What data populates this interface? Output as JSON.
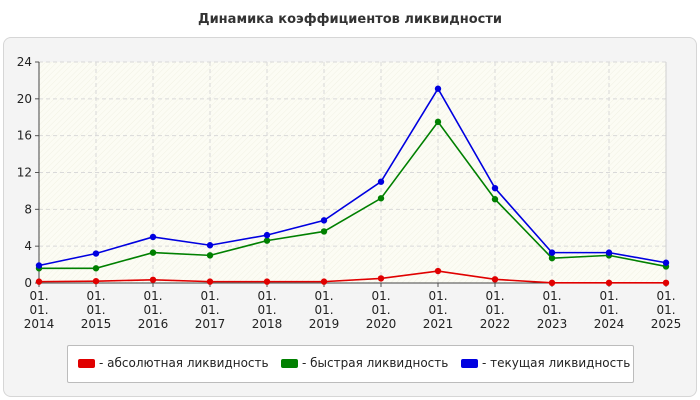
{
  "title": "Динамика коэффициентов ликвидности",
  "colors": {
    "absolute": "#e00000",
    "quick": "#008000",
    "current": "#0000e0"
  },
  "chart_data": {
    "type": "line",
    "title": "Динамика коэффициентов ликвидности",
    "xlabel": "",
    "ylabel": "",
    "categories": [
      [
        "01.",
        "01.",
        "2014"
      ],
      [
        "01.",
        "01.",
        "2015"
      ],
      [
        "01.",
        "01.",
        "2016"
      ],
      [
        "01.",
        "01.",
        "2017"
      ],
      [
        "01.",
        "01.",
        "2018"
      ],
      [
        "01.",
        "01.",
        "2019"
      ],
      [
        "01.",
        "01.",
        "2020"
      ],
      [
        "01.",
        "01.",
        "2021"
      ],
      [
        "01.",
        "01.",
        "2022"
      ],
      [
        "01.",
        "01.",
        "2023"
      ],
      [
        "01.",
        "01.",
        "2024"
      ],
      [
        "01.",
        "01.",
        "2025"
      ]
    ],
    "ylim": [
      0,
      24
    ],
    "yticks": [
      0,
      4,
      8,
      12,
      16,
      20,
      24
    ],
    "grid": true,
    "legend_position": "bottom",
    "series": [
      {
        "name": "- абсолютная ликвидность",
        "color_key": "absolute",
        "values": [
          0.15,
          0.2,
          0.35,
          0.15,
          0.15,
          0.15,
          0.5,
          1.3,
          0.4,
          0.02,
          0.02,
          0.02
        ]
      },
      {
        "name": "- быстрая ликвидность",
        "color_key": "quick",
        "values": [
          1.6,
          1.6,
          3.3,
          3.0,
          4.6,
          5.6,
          9.2,
          17.5,
          9.1,
          2.7,
          3.0,
          1.8
        ]
      },
      {
        "name": "- текущая ликвидность",
        "color_key": "current",
        "values": [
          1.9,
          3.2,
          5.0,
          4.1,
          5.2,
          6.8,
          11.0,
          21.1,
          10.3,
          3.3,
          3.3,
          2.2
        ]
      }
    ]
  }
}
